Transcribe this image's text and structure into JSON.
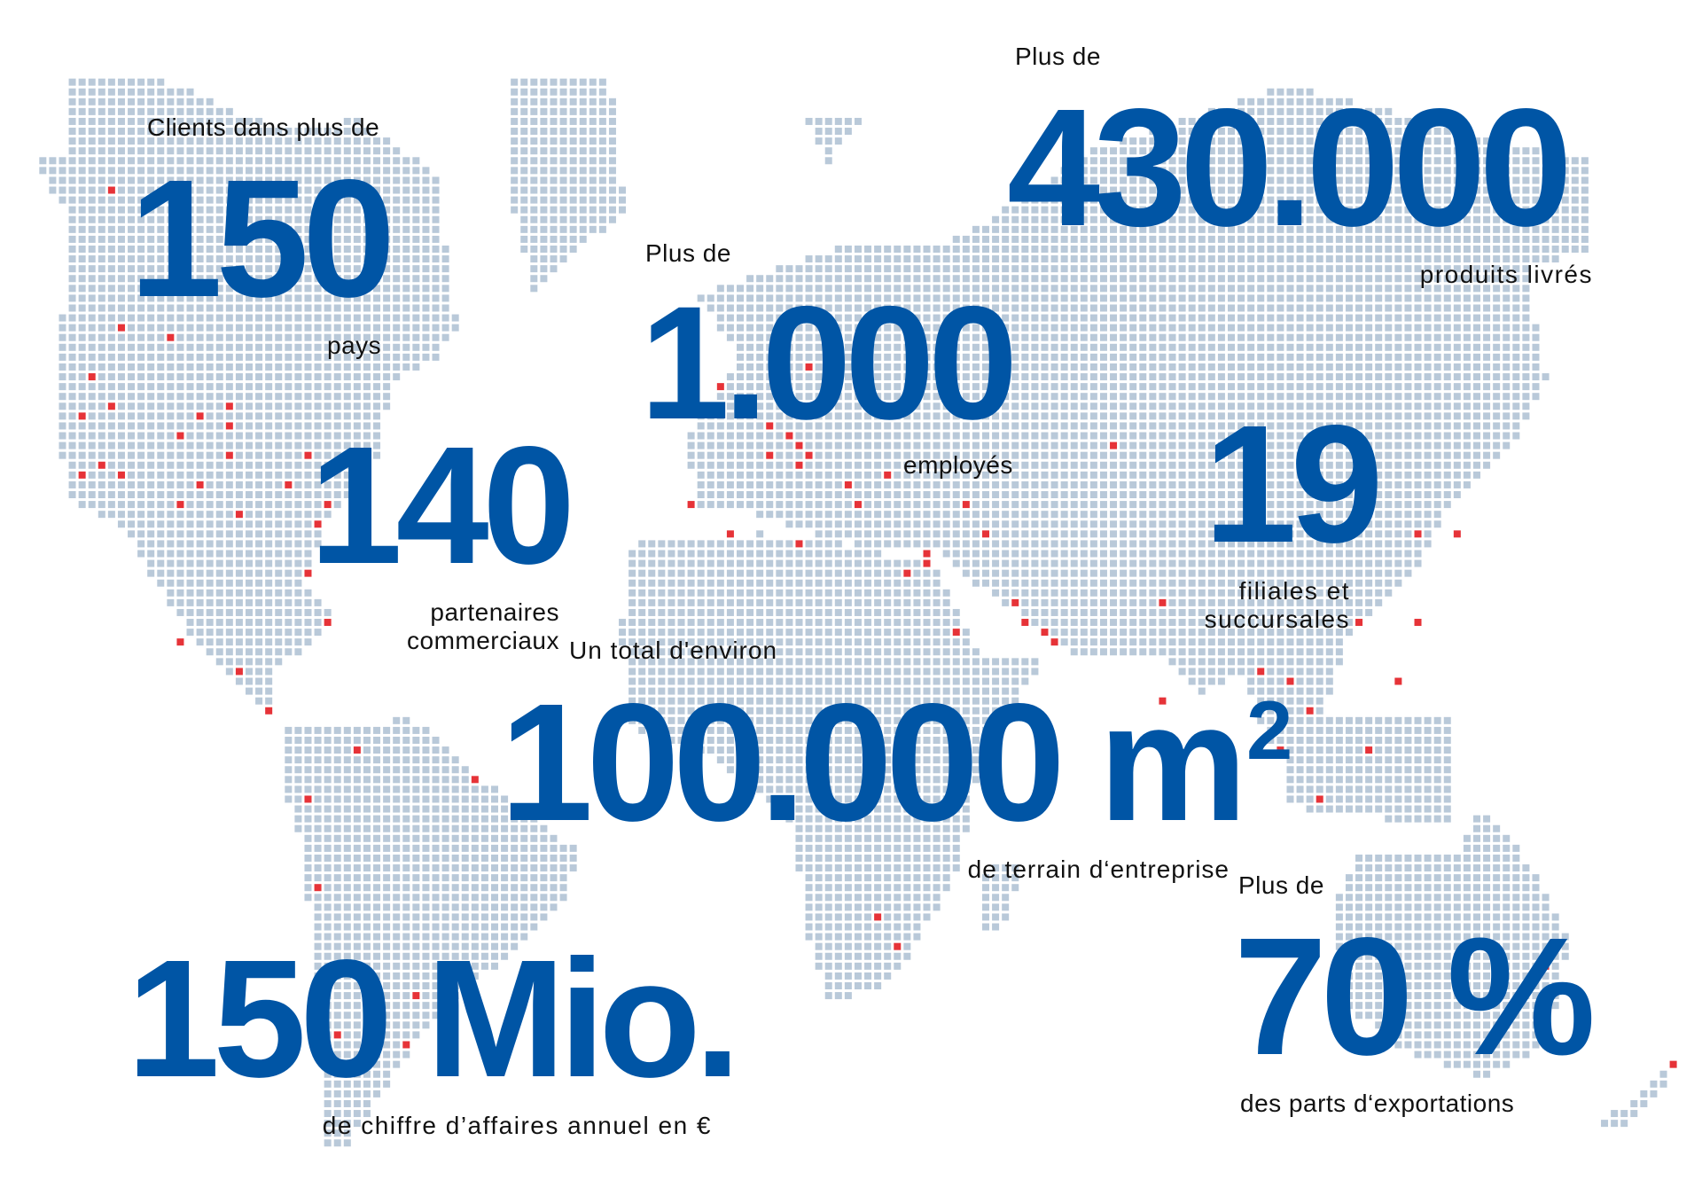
{
  "colors": {
    "accent_blue": "#0055a5",
    "map_dot": "#b9c9d9",
    "location_dot": "#e63338",
    "text": "#111111"
  },
  "stats": {
    "countries": {
      "prefix": "Clients dans plus de",
      "value": "150",
      "suffix": "pays"
    },
    "products": {
      "prefix": "Plus de",
      "value": "430.000",
      "suffix": "produits livrés"
    },
    "employees": {
      "prefix": "Plus de",
      "value": "1.000",
      "suffix": "employés"
    },
    "partners": {
      "value": "140",
      "suffix_line1": "partenaires",
      "suffix_line2": "commerciaux"
    },
    "subsidiaries": {
      "value": "19",
      "suffix_line1": "filiales et",
      "suffix_line2": "succursales"
    },
    "area": {
      "prefix": "Un total d'environ",
      "value": "100.000 m",
      "unit_exponent": "2",
      "suffix": "de terrain d‘entreprise"
    },
    "exports": {
      "prefix": "Plus de",
      "value": "70 %",
      "suffix": "des parts d‘exportations"
    },
    "revenue": {
      "value": "150 Mio.",
      "suffix": "de chiffre d’affaires annuel en €"
    }
  }
}
